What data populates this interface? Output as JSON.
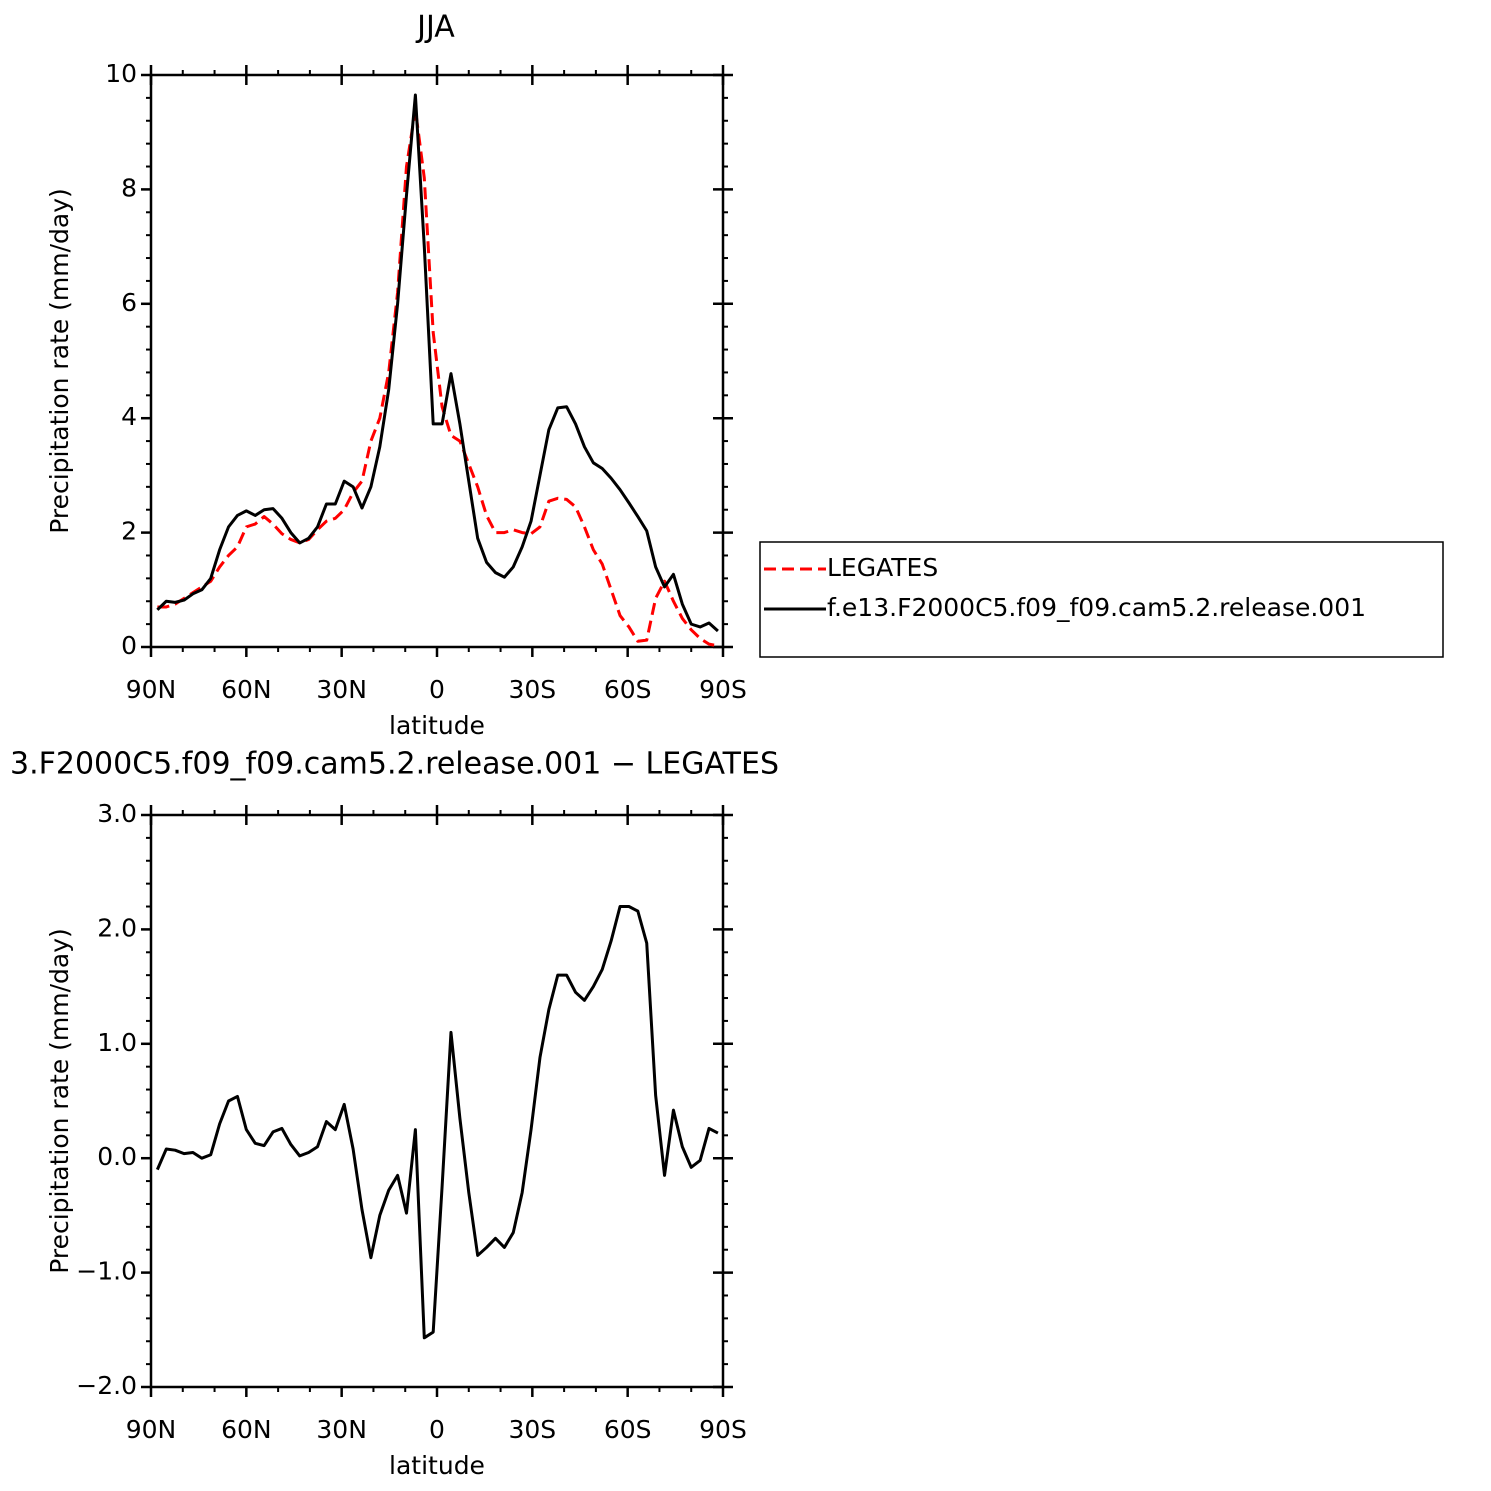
{
  "chart_data": [
    {
      "type": "line",
      "title": "JJA",
      "xlabel": "latitude",
      "ylabel": "Precipitation rate (mm/day)",
      "x": [
        88,
        85.2,
        82.4,
        79.6,
        76.8,
        74,
        71.2,
        68.4,
        65.6,
        62.8,
        60,
        57.2,
        54.4,
        51.6,
        48.8,
        46,
        43.2,
        40.4,
        37.6,
        34.8,
        32,
        29.2,
        26.4,
        23.6,
        20.8,
        18,
        15.2,
        12.4,
        9.6,
        6.8,
        4,
        1.2,
        -1.6,
        -4.4,
        -7.2,
        -10,
        -12.8,
        -15.6,
        -18.4,
        -21.2,
        -24,
        -26.8,
        -29.6,
        -32.4,
        -35.2,
        -38,
        -40.8,
        -43.6,
        -46.4,
        -49.2,
        -52,
        -54.8,
        -57.6,
        -60.4,
        -63.2,
        -66,
        -68.8,
        -71.6,
        -74.4,
        -77.2,
        -80,
        -82.8,
        -85.6,
        -88.4
      ],
      "xlim": [
        90,
        -90
      ],
      "xticks": [
        {
          "value": 90,
          "label": "90N"
        },
        {
          "value": 60,
          "label": "60N"
        },
        {
          "value": 30,
          "label": "30N"
        },
        0,
        {
          "value": -30,
          "label": "30S"
        },
        {
          "value": -60,
          "label": "60S"
        },
        {
          "value": -90,
          "label": "90S"
        }
      ],
      "ylim": [
        0,
        10
      ],
      "yticks": [
        0,
        2,
        4,
        6,
        8,
        10
      ],
      "legend": "right",
      "series": [
        {
          "name": "LEGATES",
          "color": "#ff0000",
          "dashed": true,
          "values": [
            0.7,
            0.7,
            0.75,
            0.85,
            0.95,
            1.05,
            1.15,
            1.4,
            1.6,
            1.75,
            2.1,
            2.15,
            2.28,
            2.15,
            1.98,
            1.88,
            1.82,
            1.88,
            2.05,
            2.2,
            2.25,
            2.4,
            2.7,
            2.9,
            3.6,
            4.0,
            4.8,
            6.2,
            8.4,
            9.4,
            8.2,
            5.5,
            4.2,
            3.7,
            3.6,
            3.2,
            2.8,
            2.3,
            2.0,
            2.0,
            2.05,
            2.0,
            1.98,
            2.1,
            2.55,
            2.6,
            2.58,
            2.45,
            2.1,
            1.7,
            1.45,
            1.0,
            0.55,
            0.35,
            0.1,
            0.12,
            0.85,
            1.15,
            0.8,
            0.5,
            0.3,
            0.15,
            0.05,
            0.02
          ]
        },
        {
          "name": "f.e13.F2000C5.f09_f09.cam5.2.release.001",
          "color": "#000000",
          "dashed": false,
          "values": [
            0.65,
            0.8,
            0.78,
            0.82,
            0.93,
            1.0,
            1.2,
            1.7,
            2.1,
            2.3,
            2.38,
            2.3,
            2.4,
            2.42,
            2.25,
            2.0,
            1.82,
            1.9,
            2.1,
            2.5,
            2.5,
            2.9,
            2.8,
            2.43,
            2.8,
            3.5,
            4.5,
            6.0,
            7.9,
            9.65,
            7.0,
            3.9,
            3.9,
            4.78,
            3.9,
            2.9,
            1.9,
            1.48,
            1.3,
            1.22,
            1.4,
            1.75,
            2.2,
            3.0,
            3.8,
            4.18,
            4.2,
            3.9,
            3.5,
            3.22,
            3.12,
            2.95,
            2.75,
            2.52,
            2.28,
            2.03,
            1.4,
            1.05,
            1.27,
            0.75,
            0.4,
            0.35,
            0.42,
            0.28
          ]
        }
      ]
    },
    {
      "type": "line",
      "title": "3.F2000C5.f09_f09.cam5.2.release.001 − LEGATES",
      "xlabel": "latitude",
      "ylabel": "Precipitation rate (mm/day)",
      "x": [
        88,
        85.2,
        82.4,
        79.6,
        76.8,
        74,
        71.2,
        68.4,
        65.6,
        62.8,
        60,
        57.2,
        54.4,
        51.6,
        48.8,
        46,
        43.2,
        40.4,
        37.6,
        34.8,
        32,
        29.2,
        26.4,
        23.6,
        20.8,
        18,
        15.2,
        12.4,
        9.6,
        6.8,
        4,
        1.2,
        -1.6,
        -4.4,
        -7.2,
        -10,
        -12.8,
        -15.6,
        -18.4,
        -21.2,
        -24,
        -26.8,
        -29.6,
        -32.4,
        -35.2,
        -38,
        -40.8,
        -43.6,
        -46.4,
        -49.2,
        -52,
        -54.8,
        -57.6,
        -60.4,
        -63.2,
        -66,
        -68.8,
        -71.6,
        -74.4,
        -77.2,
        -80,
        -82.8,
        -85.6,
        -88.4
      ],
      "xlim": [
        90,
        -90
      ],
      "xticks": [
        {
          "value": 90,
          "label": "90N"
        },
        {
          "value": 60,
          "label": "60N"
        },
        {
          "value": 30,
          "label": "30N"
        },
        0,
        {
          "value": -30,
          "label": "30S"
        },
        {
          "value": -60,
          "label": "60S"
        },
        {
          "value": -90,
          "label": "90S"
        }
      ],
      "ylim": [
        -2,
        3
      ],
      "yticks": [
        {
          "value": -2,
          "label": "−2.0"
        },
        {
          "value": -1,
          "label": "−1.0"
        },
        {
          "value": 0,
          "label": "0.0"
        },
        {
          "value": 1,
          "label": "1.0"
        },
        {
          "value": 2,
          "label": "2.0"
        },
        {
          "value": 3,
          "label": "3.0"
        }
      ],
      "series": [
        {
          "color": "#000000",
          "dashed": false,
          "values": [
            -0.1,
            0.08,
            0.07,
            0.04,
            0.05,
            0.0,
            0.03,
            0.3,
            0.5,
            0.54,
            0.25,
            0.13,
            0.11,
            0.23,
            0.26,
            0.12,
            0.02,
            0.05,
            0.1,
            0.32,
            0.25,
            0.47,
            0.08,
            -0.45,
            -0.87,
            -0.5,
            -0.28,
            -0.15,
            -0.48,
            0.25,
            -1.57,
            -1.52,
            -0.25,
            1.1,
            0.35,
            -0.3,
            -0.85,
            -0.78,
            -0.7,
            -0.78,
            -0.65,
            -0.3,
            0.25,
            0.88,
            1.3,
            1.6,
            1.6,
            1.45,
            1.38,
            1.5,
            1.65,
            1.9,
            2.2,
            2.2,
            2.16,
            1.88,
            0.55,
            -0.15,
            0.42,
            0.1,
            -0.08,
            -0.02,
            0.26,
            0.22
          ]
        }
      ]
    }
  ]
}
